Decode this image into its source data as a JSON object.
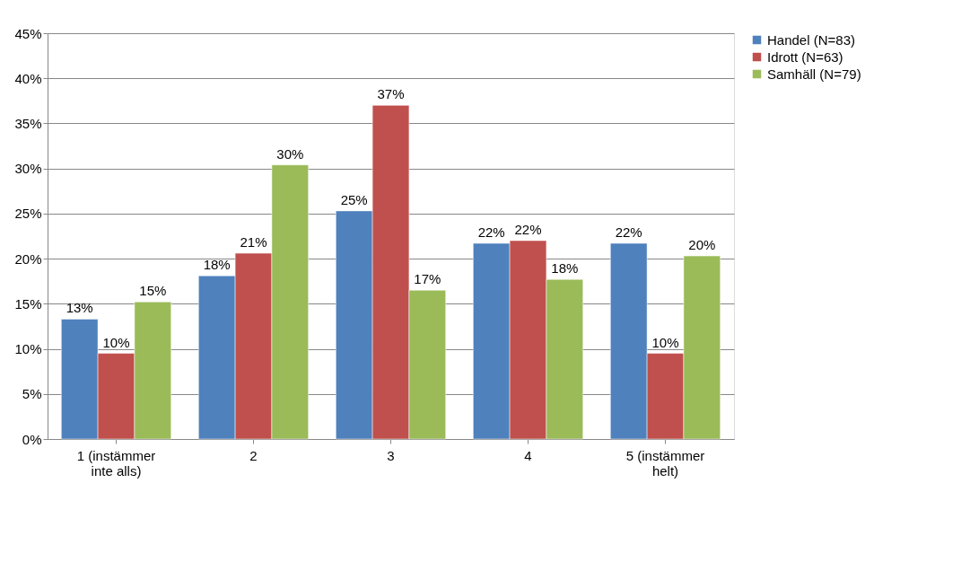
{
  "chart_data": {
    "type": "bar",
    "categories": [
      "1 (instämmer\ninte alls)",
      "2",
      "3",
      "4",
      "5 (instämmer\nhelt)"
    ],
    "series": [
      {
        "name": "Handel (N=83)",
        "color": "#4f81bd",
        "values": [
          13.3,
          18.1,
          25.3,
          21.7,
          21.7
        ],
        "value_labels": [
          "13%",
          "18%",
          "25%",
          "22%",
          "22%"
        ]
      },
      {
        "name": "Idrott (N=63)",
        "color": "#c0504d",
        "values": [
          9.5,
          20.6,
          37.0,
          22.0,
          9.5
        ],
        "value_labels": [
          "10%",
          "21%",
          "37%",
          "22%",
          "10%"
        ]
      },
      {
        "name": "Samhäll (N=79)",
        "color": "#9bbb59",
        "values": [
          15.2,
          30.4,
          16.5,
          17.7,
          20.3
        ],
        "value_labels": [
          "15%",
          "30%",
          "17%",
          "18%",
          "20%"
        ]
      }
    ],
    "ylim": [
      0,
      45
    ],
    "yticks": [
      {
        "value": 0,
        "label": "0%"
      },
      {
        "value": 5,
        "label": "5%"
      },
      {
        "value": 10,
        "label": "10%"
      },
      {
        "value": 15,
        "label": "15%"
      },
      {
        "value": 20,
        "label": "20%"
      },
      {
        "value": 25,
        "label": "25%"
      },
      {
        "value": 30,
        "label": "30%"
      },
      {
        "value": 35,
        "label": "35%"
      },
      {
        "value": 40,
        "label": "40%"
      },
      {
        "value": 45,
        "label": "45%"
      }
    ],
    "grid": "y",
    "legend": "right"
  }
}
